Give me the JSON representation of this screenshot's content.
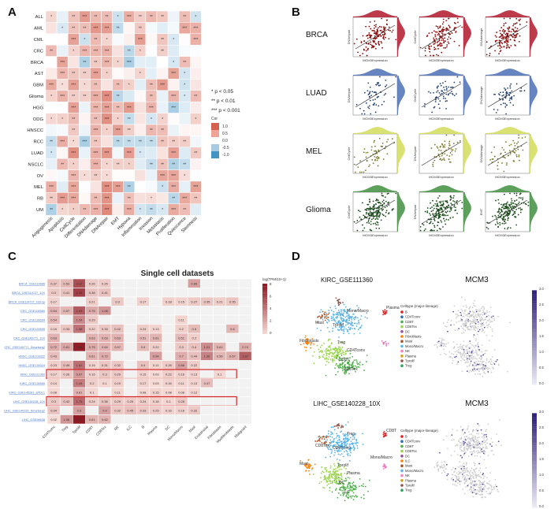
{
  "panels": {
    "A": "A",
    "B": "B",
    "C": "C",
    "D": "D"
  },
  "panel_a": {
    "rows": [
      "ALL",
      "AML",
      "CML",
      "CRC",
      "BRCA",
      "AST",
      "GBM",
      "Glioma",
      "HGG",
      "ODG",
      "HNSCC",
      "RCC",
      "LUAD",
      "NSCLC",
      "OV",
      "MEL",
      "RB",
      "UM"
    ],
    "cols": [
      "Angiogenesis",
      "Apoptosis",
      "CellCycle",
      "Differentiation",
      "DNAdamage",
      "DNArepair",
      "EMT",
      "Hypoxia",
      "Inflammation",
      "Invasion",
      "Metastasis",
      "Proliferation",
      "Quiescence",
      "Stemness"
    ],
    "significance_legend": [
      "* p < 0.05",
      "** p < 0.01",
      "*** p < 0.001"
    ],
    "color_legend_title": "Cor",
    "color_legend_ticks": [
      "1.0",
      "0.5",
      "0.0",
      "-0.5",
      "-1.0"
    ],
    "colors": {
      "high": "#d6604d",
      "mid": "#ffffff",
      "low": "#4393c3"
    }
  },
  "panel_b": {
    "cancers": [
      "BRCA",
      "LUAD",
      "MEL",
      "Glioma"
    ],
    "colors": [
      "#b2182b",
      "#4a6fb5",
      "#d4dc5a",
      "#3f8f3f"
    ],
    "point_colors": [
      "#8b0a0a",
      "#23406e",
      "#7c7a2a",
      "#1b4d1b"
    ],
    "xlabel": "MCM3Expression",
    "ylabels": [
      [
        "DNArepair",
        "CellCycle",
        "DNAdamage"
      ],
      [
        "DNArepair",
        "CellCycle",
        "DNAdamage"
      ],
      [
        "CellCycle",
        "DNArepair",
        "DNAdamage"
      ],
      [
        "CellCycle",
        "DNArepair",
        "EMT"
      ]
    ]
  },
  "panel_c": {
    "title": "Single cell datasets",
    "legend_title": "log(TPM/10+1)",
    "legend_ticks": [
      "8",
      "6",
      "4",
      "2",
      "0"
    ],
    "datasets": [
      "BRCA_GSE110686",
      "BRCA_GSE114727_10X",
      "BRCA_GSE114727_inDrop",
      "CRC_GSE108989",
      "CRC_GSE136394",
      "CRC_GSE139555",
      "CRC_GSE146771_10X",
      "CRC_GSE146771_Smartseq2",
      "HNSC_GSE103322",
      "HNSC_GSE139324",
      "KIRC_GSE111360",
      "KIRC_GSE139555",
      "KIRC_GSE145281_aPDL1",
      "LIHC_GSE140228_10X",
      "LIHC_GSE140228_Smartseq2",
      "LIHC_GSE98638"
    ],
    "celltypes": [
      "CD4Tconv",
      "Treg",
      "Tprolif",
      "CD8T",
      "CD8Tex",
      "NK",
      "ILC",
      "B",
      "Plasma",
      "DC",
      "Mono/Macro",
      "Mast",
      "Endothelial",
      "Fibroblasts",
      "Myofibroblasts",
      "Malignant"
    ],
    "values": [
      [
        "0.37",
        "0.53",
        "2.12",
        "0.26",
        "0.25",
        "",
        "",
        "",
        "",
        "",
        "",
        "0.89",
        "",
        "",
        "",
        ""
      ],
      [
        "0.3",
        "0.41",
        "2.35",
        "0.38",
        "0.41",
        "",
        "",
        "",
        "",
        "",
        "",
        "",
        "",
        "",
        "",
        ""
      ],
      [
        "0.17",
        "",
        "",
        "0.21",
        "",
        "0.3",
        "",
        "0.17",
        "",
        "0.18",
        "0.15",
        "0.27",
        "0.35",
        "0.21",
        "0.35",
        ""
      ],
      [
        "0.64",
        "0.57",
        "1.93",
        "0.75",
        "1.08",
        "",
        "",
        "",
        "",
        "",
        "",
        "",
        "",
        "",
        "",
        ""
      ],
      [
        "0.54",
        "",
        "1.24",
        "0.29",
        "",
        "",
        "",
        "",
        "",
        "",
        "0.11",
        "",
        "",
        "",
        "",
        ""
      ],
      [
        "0.16",
        "0.33",
        "1.58",
        "0.22",
        "0.33",
        "0.42",
        "",
        "0.24",
        "0.13",
        "",
        "0.2",
        "0.5",
        "",
        "",
        "0.6",
        ""
      ],
      [
        "0.63",
        "",
        "",
        "0.63",
        "0.63",
        "0.63",
        "",
        "0.51",
        "0.61",
        "",
        "0.51",
        "0.2",
        "",
        "",
        "",
        ""
      ],
      [
        "0.72",
        "0.81",
        "2.86",
        "0.75",
        "0.64",
        "0.57",
        "",
        "0.5",
        "0.22",
        "",
        "0.3",
        "0.4",
        "1.21",
        "0.62",
        "",
        "0.74"
      ],
      [
        "0.43",
        "",
        "",
        "0.61",
        "0.72",
        "",
        "",
        "",
        "0.94",
        "",
        "0.7",
        "0.44",
        "1.36",
        "0.56",
        "0.67",
        "1.87"
      ],
      [
        "0.23",
        "0.49",
        "1.62",
        "0.15",
        "0.31",
        "0.32",
        "",
        "0.4",
        "0.11",
        "0.26",
        "0.88",
        "0.22",
        "",
        "",
        "",
        ""
      ],
      [
        "0.17",
        "0.26",
        "0.97",
        "0.16",
        "0.3",
        "0.29",
        "",
        "0.15",
        "0.03",
        "0.22",
        "0.16",
        "0.13",
        "",
        "0.1",
        "",
        ""
      ],
      [
        "0.14",
        "",
        "1.44",
        "0.2",
        "0.1",
        "0.19",
        "",
        "0.17",
        "0.03",
        "0.16",
        "0.11",
        "0.13",
        "0.47",
        "",
        "",
        ""
      ],
      [
        "0.08",
        "",
        "0.61",
        "0.1",
        "",
        "0.11",
        "",
        "0.08",
        "0.15",
        "0.08",
        "0.08",
        "0.12",
        "",
        "",
        "",
        ""
      ],
      [
        "0.3",
        "0.42",
        "1.75",
        "0.24",
        "0.36",
        "0.29",
        "0.25",
        "0.24",
        "0.18",
        "0.1",
        "0.28",
        "",
        "",
        "",
        "",
        ""
      ],
      [
        "0.34",
        "",
        "0.9",
        "",
        "0.9",
        "0.32",
        "0.45",
        "0.33",
        "0.25",
        "0.16",
        "0.16",
        "0.32",
        "",
        "",
        "",
        ""
      ],
      [
        "0.02",
        "1.06",
        "2.91",
        "0.61",
        "0.62",
        "",
        "",
        "",
        "",
        "",
        "",
        "",
        "",
        "",
        "",
        ""
      ]
    ],
    "highlighted_rows": [
      "KIRC_GSE111360",
      "LIHC_GSE140228_10X"
    ]
  },
  "panel_d": {
    "umap1_title": "KIRC_GSE111360",
    "umap2_title": "LIHC_GSE140228_10X",
    "gene": "MCM3",
    "legend_title": "Celltype (major-lineage)",
    "legend1": [
      "B",
      "CD4Tconv",
      "CD8T",
      "CD8Tex",
      "DC",
      "Fibroblasts",
      "Mast",
      "Mono/Macro",
      "NK",
      "Plasma",
      "Tprolif",
      "Treg"
    ],
    "legend2": [
      "B",
      "CD4Tconv",
      "CD8T",
      "CD8Tex",
      "DC",
      "ILC",
      "Mast",
      "Mono/Macro",
      "NK",
      "Plasma",
      "Tprolif",
      "Treg"
    ],
    "cluster_labels1": [
      "Mono/Macro",
      "Tprolif",
      "Plasma",
      "Mast",
      "Fibroblasts",
      "Treg",
      "CD4Tconv",
      "CD8T",
      "CD8Tex"
    ],
    "cluster_labels2": [
      "Treg",
      "CD4Tconv",
      "CD8T",
      "CD8Tex",
      "Mast",
      "Tprolif",
      "Plasma",
      "DC",
      "ILC",
      "Mono/Macro"
    ],
    "scale1_ticks": [
      "3.0",
      "2.5",
      "2.0",
      "1.5",
      "1.0",
      "0.5",
      "0.0"
    ],
    "scale2_ticks": [
      "3.0",
      "2.5",
      "2.0",
      "1.5",
      "1.0",
      "0.5",
      "0.0"
    ]
  }
}
